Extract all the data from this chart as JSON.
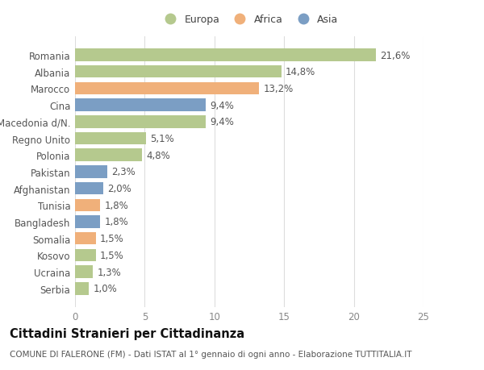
{
  "categories": [
    "Romania",
    "Albania",
    "Marocco",
    "Cina",
    "Macedonia d/N.",
    "Regno Unito",
    "Polonia",
    "Pakistan",
    "Afghanistan",
    "Tunisia",
    "Bangladesh",
    "Somalia",
    "Kosovo",
    "Ucraina",
    "Serbia"
  ],
  "values": [
    21.6,
    14.8,
    13.2,
    9.4,
    9.4,
    5.1,
    4.8,
    2.3,
    2.0,
    1.8,
    1.8,
    1.5,
    1.5,
    1.3,
    1.0
  ],
  "labels": [
    "21,6%",
    "14,8%",
    "13,2%",
    "9,4%",
    "9,4%",
    "5,1%",
    "4,8%",
    "2,3%",
    "2,0%",
    "1,8%",
    "1,8%",
    "1,5%",
    "1,5%",
    "1,3%",
    "1,0%"
  ],
  "continents": [
    "Europa",
    "Europa",
    "Africa",
    "Asia",
    "Europa",
    "Europa",
    "Europa",
    "Asia",
    "Asia",
    "Africa",
    "Asia",
    "Africa",
    "Europa",
    "Europa",
    "Europa"
  ],
  "colors": {
    "Europa": "#b5c98e",
    "Africa": "#f0b07a",
    "Asia": "#7b9ec4"
  },
  "legend_labels": [
    "Europa",
    "Africa",
    "Asia"
  ],
  "title": "Cittadini Stranieri per Cittadinanza",
  "subtitle": "COMUNE DI FALERONE (FM) - Dati ISTAT al 1° gennaio di ogni anno - Elaborazione TUTTITALIA.IT",
  "xlim": [
    0,
    25
  ],
  "xticks": [
    0,
    5,
    10,
    15,
    20,
    25
  ],
  "background_color": "#ffffff",
  "grid_color": "#dddddd",
  "bar_height": 0.75,
  "label_fontsize": 8.5,
  "tick_fontsize": 8.5,
  "title_fontsize": 10.5,
  "subtitle_fontsize": 7.5
}
